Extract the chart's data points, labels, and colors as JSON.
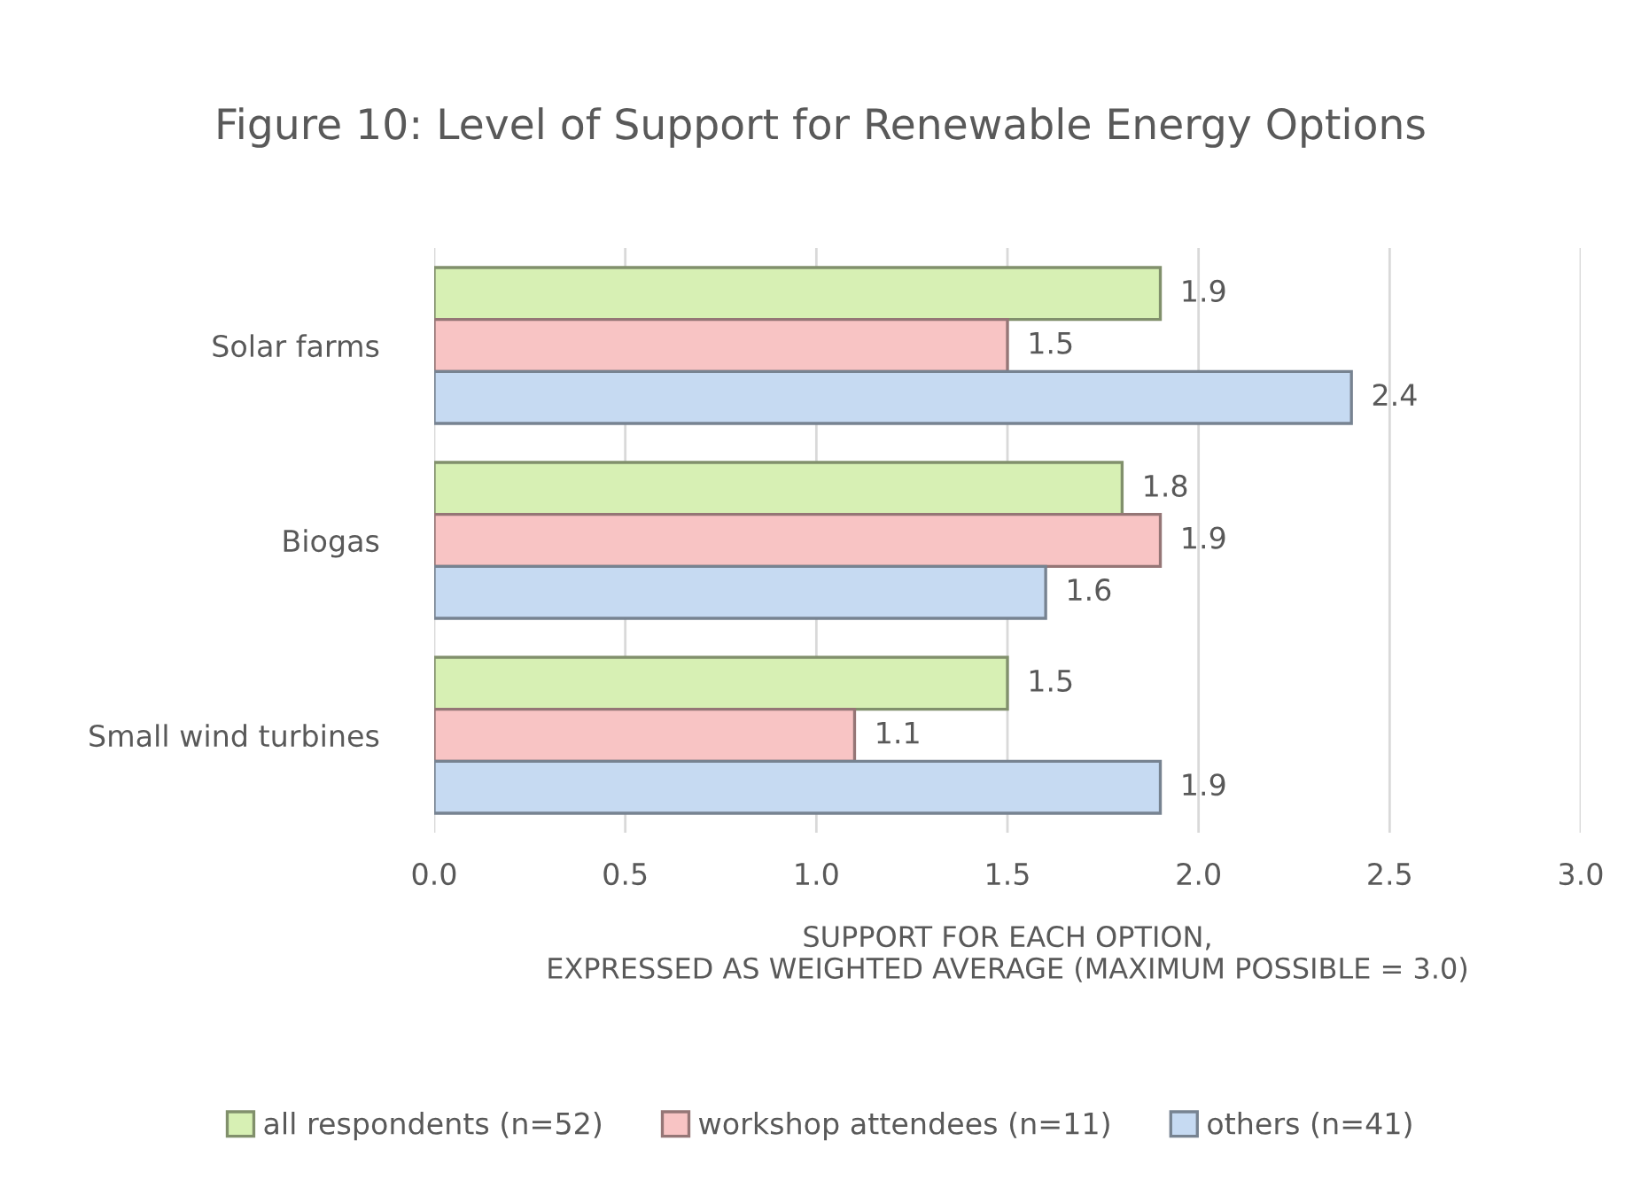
{
  "chart_data": {
    "type": "bar",
    "orientation": "horizontal",
    "title": "Figure 10: Level of Support for Renewable Energy Options",
    "xlabel": "SUPPORT FOR EACH OPTION,\nEXPRESSED AS WEIGHTED AVERAGE (MAXIMUM POSSIBLE = 3.0)",
    "categories": [
      "Solar farms",
      "Biogas",
      "Small wind turbines"
    ],
    "series": [
      {
        "name": "all respondents (n=52)",
        "color": "#d7f0b4",
        "values": [
          1.9,
          1.8,
          1.5
        ]
      },
      {
        "name": "workshop attendees (n=11)",
        "color": "#f8c4c4",
        "values": [
          1.5,
          1.9,
          1.1
        ]
      },
      {
        "name": "others (n=41)",
        "color": "#c6daf2",
        "values": [
          2.4,
          1.6,
          1.9
        ]
      }
    ],
    "xlim": [
      0,
      3
    ],
    "xticks": [
      {
        "value": 0,
        "label": "0.0"
      },
      {
        "value": 0.5,
        "label": "0.5"
      },
      {
        "value": 1,
        "label": "1.0"
      },
      {
        "value": 1.5,
        "label": "1.5"
      },
      {
        "value": 2,
        "label": "2.0"
      },
      {
        "value": 2.5,
        "label": "2.5"
      },
      {
        "value": 3,
        "label": "3.0"
      }
    ],
    "grid": "x",
    "legend": "bottom",
    "data_labels": true
  }
}
